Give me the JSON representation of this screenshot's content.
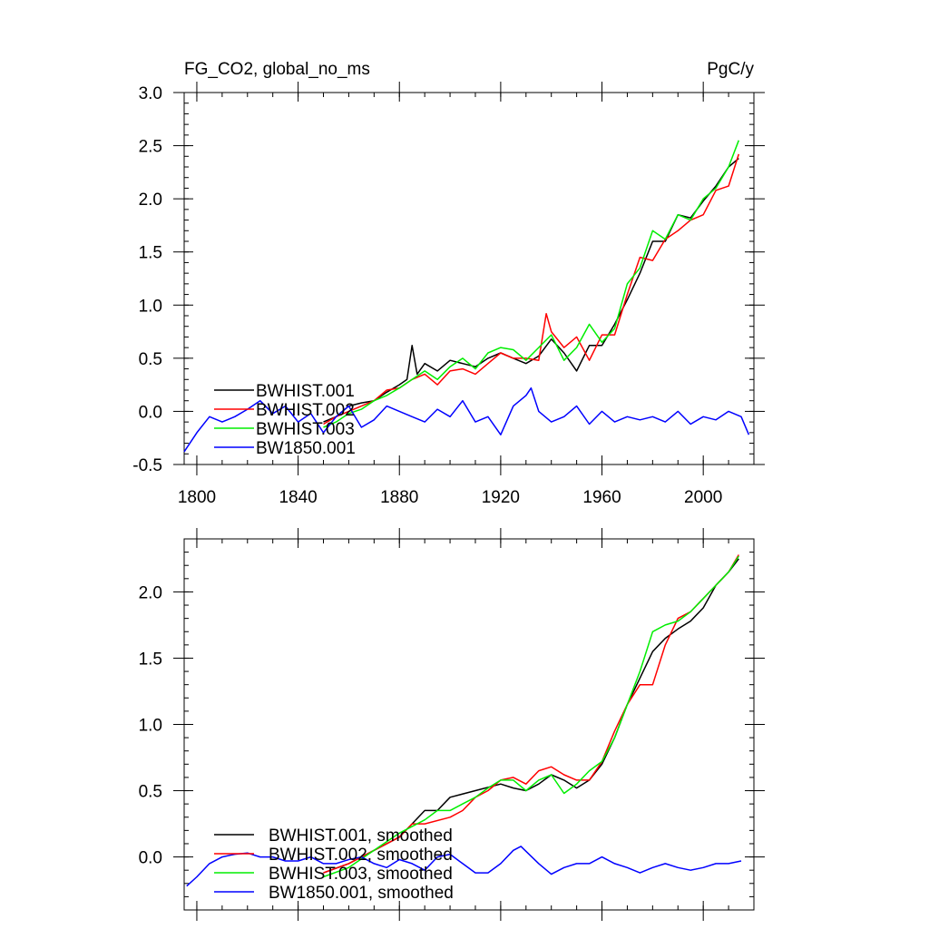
{
  "chart_data": [
    {
      "type": "line",
      "title": "FG_CO2, global_no_ms",
      "units": "PgC/y",
      "xlim": [
        1795,
        2020
      ],
      "ylim": [
        -0.5,
        3.0
      ],
      "x_ticks": [
        1800,
        1840,
        1880,
        1920,
        1960,
        2000
      ],
      "x_tick_labels": [
        "1800",
        "1840",
        "1880",
        "1920",
        "1960",
        "2000"
      ],
      "y_ticks": [
        -0.5,
        0.0,
        0.5,
        1.0,
        1.5,
        2.0,
        2.5,
        3.0
      ],
      "y_tick_labels": [
        "-0.5",
        "0.0",
        "0.5",
        "1.0",
        "1.5",
        "2.0",
        "2.5",
        "3.0"
      ],
      "grid": false,
      "legend_position": "bottom-left",
      "legend": [
        "BWHIST.001",
        "BWHIST.002",
        "BWHIST.003",
        "BW1850.001"
      ],
      "series": [
        {
          "name": "BWHIST.001",
          "color": "#000000",
          "x": [
            1850,
            1855,
            1860,
            1865,
            1870,
            1875,
            1880,
            1883,
            1885,
            1887,
            1890,
            1895,
            1900,
            1905,
            1910,
            1915,
            1920,
            1925,
            1930,
            1935,
            1940,
            1945,
            1950,
            1955,
            1960,
            1965,
            1970,
            1975,
            1980,
            1985,
            1990,
            1995,
            2000,
            2005,
            2010,
            2014
          ],
          "y": [
            -0.1,
            -0.05,
            0.05,
            0.08,
            0.1,
            0.18,
            0.25,
            0.3,
            0.62,
            0.35,
            0.45,
            0.38,
            0.48,
            0.45,
            0.42,
            0.5,
            0.55,
            0.5,
            0.45,
            0.52,
            0.68,
            0.55,
            0.38,
            0.62,
            0.62,
            0.82,
            1.05,
            1.3,
            1.6,
            1.6,
            1.85,
            1.82,
            1.98,
            2.12,
            2.3,
            2.38
          ]
        },
        {
          "name": "BWHIST.002",
          "color": "#ff0000",
          "x": [
            1850,
            1855,
            1860,
            1865,
            1870,
            1875,
            1880,
            1885,
            1890,
            1895,
            1900,
            1905,
            1910,
            1915,
            1920,
            1925,
            1930,
            1935,
            1938,
            1940,
            1945,
            1950,
            1955,
            1960,
            1965,
            1970,
            1975,
            1980,
            1985,
            1990,
            1995,
            2000,
            2005,
            2010,
            2014
          ],
          "y": [
            -0.12,
            -0.05,
            0.0,
            0.05,
            0.1,
            0.2,
            0.22,
            0.3,
            0.35,
            0.25,
            0.38,
            0.4,
            0.35,
            0.45,
            0.55,
            0.5,
            0.5,
            0.48,
            0.92,
            0.75,
            0.6,
            0.7,
            0.48,
            0.72,
            0.72,
            1.1,
            1.45,
            1.42,
            1.62,
            1.7,
            1.8,
            1.85,
            2.08,
            2.12,
            2.42
          ]
        },
        {
          "name": "BWHIST.003",
          "color": "#00ee00",
          "x": [
            1850,
            1855,
            1860,
            1865,
            1870,
            1875,
            1880,
            1885,
            1890,
            1895,
            1900,
            1905,
            1910,
            1915,
            1920,
            1925,
            1930,
            1935,
            1940,
            1945,
            1950,
            1955,
            1960,
            1965,
            1970,
            1975,
            1980,
            1985,
            1990,
            1995,
            2000,
            2005,
            2010,
            2014
          ],
          "y": [
            -0.15,
            -0.1,
            -0.02,
            0.02,
            0.1,
            0.15,
            0.22,
            0.3,
            0.38,
            0.3,
            0.42,
            0.5,
            0.4,
            0.55,
            0.6,
            0.58,
            0.48,
            0.6,
            0.72,
            0.48,
            0.6,
            0.82,
            0.65,
            0.78,
            1.2,
            1.35,
            1.7,
            1.62,
            1.85,
            1.8,
            2.0,
            2.1,
            2.3,
            2.55
          ]
        },
        {
          "name": "BW1850.001",
          "color": "#0000ff",
          "x": [
            1795,
            1800,
            1805,
            1810,
            1815,
            1820,
            1825,
            1830,
            1835,
            1840,
            1845,
            1850,
            1855,
            1860,
            1865,
            1870,
            1875,
            1880,
            1885,
            1890,
            1895,
            1900,
            1905,
            1910,
            1915,
            1920,
            1925,
            1930,
            1932,
            1935,
            1940,
            1945,
            1950,
            1955,
            1960,
            1965,
            1970,
            1975,
            1980,
            1985,
            1990,
            1995,
            2000,
            2005,
            2010,
            2015,
            2018
          ],
          "y": [
            -0.38,
            -0.2,
            -0.05,
            -0.1,
            -0.05,
            0.02,
            0.1,
            -0.02,
            0.05,
            -0.1,
            -0.02,
            -0.2,
            -0.05,
            0.05,
            -0.15,
            -0.08,
            0.05,
            0.0,
            -0.05,
            -0.1,
            0.02,
            -0.05,
            0.1,
            -0.1,
            -0.05,
            -0.22,
            0.05,
            0.15,
            0.22,
            0.0,
            -0.1,
            -0.05,
            0.05,
            -0.12,
            0.0,
            -0.1,
            -0.05,
            -0.08,
            -0.05,
            -0.1,
            0.0,
            -0.12,
            -0.05,
            -0.08,
            0.0,
            -0.05,
            -0.22
          ]
        }
      ]
    },
    {
      "type": "line",
      "title": "",
      "xlim": [
        1795,
        2020
      ],
      "ylim": [
        -0.4,
        2.4
      ],
      "x_ticks": [
        1800,
        1840,
        1880,
        1920,
        1960,
        2000
      ],
      "x_tick_labels": [
        "",
        "",
        "",
        "",
        "",
        ""
      ],
      "y_ticks": [
        0.0,
        0.5,
        1.0,
        1.5,
        2.0
      ],
      "y_tick_labels": [
        "0.0",
        "0.5",
        "1.0",
        "1.5",
        "2.0"
      ],
      "grid": false,
      "legend_position": "bottom-left",
      "legend": [
        "BWHIST.001, smoothed",
        "BWHIST.002, smoothed",
        "BWHIST.003, smoothed",
        "BW1850.001, smoothed"
      ],
      "series": [
        {
          "name": "BWHIST.001, smoothed",
          "color": "#000000",
          "x": [
            1850,
            1860,
            1870,
            1880,
            1885,
            1890,
            1895,
            1900,
            1910,
            1920,
            1925,
            1930,
            1935,
            1940,
            1945,
            1950,
            1955,
            1960,
            1965,
            1970,
            1975,
            1980,
            1985,
            1990,
            1995,
            2000,
            2005,
            2010,
            2014
          ],
          "y": [
            -0.12,
            -0.05,
            0.05,
            0.15,
            0.25,
            0.35,
            0.35,
            0.45,
            0.5,
            0.55,
            0.52,
            0.5,
            0.55,
            0.62,
            0.58,
            0.52,
            0.58,
            0.7,
            0.9,
            1.15,
            1.35,
            1.55,
            1.65,
            1.72,
            1.78,
            1.88,
            2.05,
            2.15,
            2.25
          ]
        },
        {
          "name": "BWHIST.002, smoothed",
          "color": "#ff0000",
          "x": [
            1850,
            1860,
            1870,
            1880,
            1885,
            1890,
            1900,
            1905,
            1910,
            1915,
            1920,
            1925,
            1930,
            1935,
            1940,
            1945,
            1950,
            1955,
            1960,
            1965,
            1970,
            1975,
            1980,
            1985,
            1990,
            1995,
            2000,
            2005,
            2010,
            2014
          ],
          "y": [
            -0.12,
            -0.05,
            0.05,
            0.15,
            0.25,
            0.25,
            0.3,
            0.35,
            0.45,
            0.5,
            0.58,
            0.6,
            0.55,
            0.65,
            0.68,
            0.62,
            0.58,
            0.58,
            0.72,
            0.95,
            1.15,
            1.3,
            1.3,
            1.6,
            1.8,
            1.85,
            1.95,
            2.05,
            2.15,
            2.28
          ]
        },
        {
          "name": "BWHIST.003, smoothed",
          "color": "#00ee00",
          "x": [
            1850,
            1860,
            1870,
            1880,
            1890,
            1895,
            1900,
            1905,
            1910,
            1915,
            1920,
            1925,
            1930,
            1935,
            1940,
            1945,
            1950,
            1955,
            1960,
            1965,
            1970,
            1975,
            1980,
            1985,
            1990,
            1995,
            2000,
            2005,
            2010,
            2014
          ],
          "y": [
            -0.15,
            -0.08,
            0.05,
            0.18,
            0.28,
            0.35,
            0.35,
            0.4,
            0.45,
            0.52,
            0.58,
            0.58,
            0.5,
            0.58,
            0.62,
            0.48,
            0.55,
            0.65,
            0.72,
            0.9,
            1.15,
            1.4,
            1.7,
            1.75,
            1.78,
            1.85,
            1.95,
            2.05,
            2.15,
            2.27
          ]
        },
        {
          "name": "BW1850.001, smoothed",
          "color": "#0000ff",
          "x": [
            1796,
            1800,
            1805,
            1810,
            1815,
            1820,
            1825,
            1830,
            1835,
            1840,
            1845,
            1850,
            1855,
            1860,
            1865,
            1870,
            1875,
            1880,
            1885,
            1890,
            1895,
            1900,
            1905,
            1910,
            1915,
            1920,
            1925,
            1928,
            1935,
            1940,
            1945,
            1950,
            1955,
            1960,
            1965,
            1970,
            1975,
            1980,
            1985,
            1990,
            1995,
            2000,
            2005,
            2010,
            2015
          ],
          "y": [
            -0.22,
            -0.15,
            -0.05,
            0.0,
            0.02,
            0.03,
            0.0,
            0.0,
            -0.03,
            -0.03,
            0.0,
            -0.05,
            -0.05,
            -0.02,
            0.0,
            -0.05,
            -0.08,
            -0.02,
            -0.05,
            -0.1,
            0.0,
            0.02,
            -0.05,
            -0.12,
            -0.12,
            -0.05,
            0.05,
            0.08,
            -0.05,
            -0.13,
            -0.08,
            -0.05,
            -0.05,
            0.0,
            -0.05,
            -0.08,
            -0.12,
            -0.08,
            -0.05,
            -0.08,
            -0.1,
            -0.08,
            -0.05,
            -0.05,
            -0.03
          ]
        }
      ]
    }
  ]
}
